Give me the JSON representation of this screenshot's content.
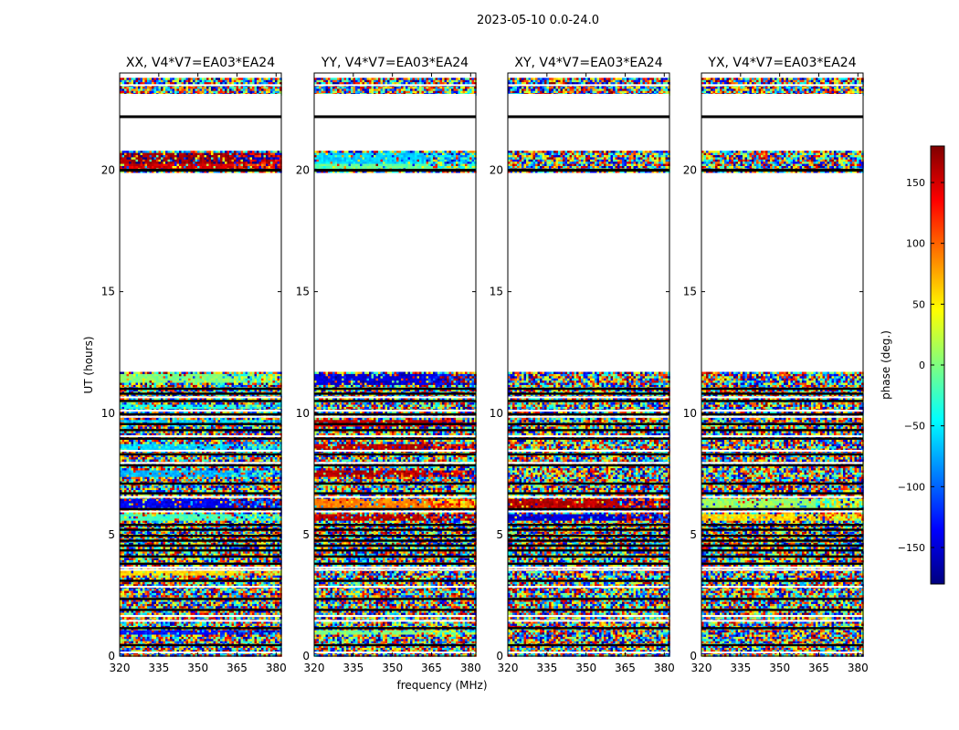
{
  "figure": {
    "suptitle": "2023-05-10 0.0-24.0",
    "ylabel": "UT (hours)",
    "xlabel": "frequency (MHz)"
  },
  "colorbar": {
    "label": "phase (deg.)",
    "range": [
      -180,
      180
    ],
    "ticks": [
      -150,
      -100,
      -50,
      0,
      50,
      100,
      150
    ],
    "tick_labels": [
      "−150",
      "−100",
      "−50",
      "0",
      "50",
      "100",
      "150"
    ],
    "colormap": "jet",
    "colormap_colors": [
      "#00007f",
      "#0000ff",
      "#007fff",
      "#00ffff",
      "#7fff7f",
      "#ffff00",
      "#ff7f00",
      "#ff0000",
      "#7f0000"
    ]
  },
  "chart_data": [
    {
      "type": "heatmap",
      "title": "XX, V4*V7=EA03*EA24",
      "x_range": [
        320,
        382
      ],
      "y_range": [
        0,
        24
      ],
      "xticks": [
        320,
        335,
        350,
        365,
        380
      ],
      "yticks": [
        0,
        5,
        10,
        15,
        20
      ],
      "flagged_gap_hours": [
        11.7,
        19.95
      ],
      "band_phases": {
        "0.9-1.1": -130,
        "3.4-3.6": 60,
        "5.6-5.9": -20,
        "6.1-6.5": -140,
        "7.4-7.7": -70,
        "8.5-8.8": -60,
        "9.6-9.8": -60,
        "10.2-10.4": -40,
        "11.3-11.7": 0,
        "20.0-20.3": 150,
        "20.3-20.8": 170
      }
    },
    {
      "type": "heatmap",
      "title": "YY, V4*V7=EA03*EA24",
      "x_range": [
        320,
        382
      ],
      "y_range": [
        0,
        24
      ],
      "xticks": [
        320,
        335,
        350,
        365,
        380
      ],
      "yticks": [
        0,
        5,
        10,
        15,
        20
      ],
      "flagged_gap_hours": [
        11.7,
        19.95
      ],
      "band_phases": {
        "0.9-1.1": 0,
        "5.6-5.9": 160,
        "6.1-6.5": 90,
        "7.4-7.7": 160,
        "8.5-8.8": 160,
        "9.5-9.8": 160,
        "11.2-11.7": -150,
        "20.0-20.3": -10,
        "20.3-20.8": -60
      }
    },
    {
      "type": "heatmap",
      "title": "XY, V4*V7=EA03*EA24",
      "x_range": [
        320,
        382
      ],
      "y_range": [
        0,
        24
      ],
      "xticks": [
        320,
        335,
        350,
        365,
        380
      ],
      "yticks": [
        0,
        5,
        10,
        15,
        20
      ],
      "flagged_gap_hours": [
        11.7,
        19.95
      ],
      "band_phases": {
        "5.6-5.9": -150,
        "6.1-6.5": 160
      }
    },
    {
      "type": "heatmap",
      "title": "YX, V4*V7=EA03*EA24",
      "x_range": [
        320,
        382
      ],
      "y_range": [
        0,
        24
      ],
      "xticks": [
        320,
        335,
        350,
        365,
        380
      ],
      "yticks": [
        0,
        5,
        10,
        15,
        20
      ],
      "flagged_gap_hours": [
        11.7,
        19.95
      ],
      "band_phases": {
        "5.6-5.9": 60,
        "6.1-6.5": 10
      }
    }
  ]
}
